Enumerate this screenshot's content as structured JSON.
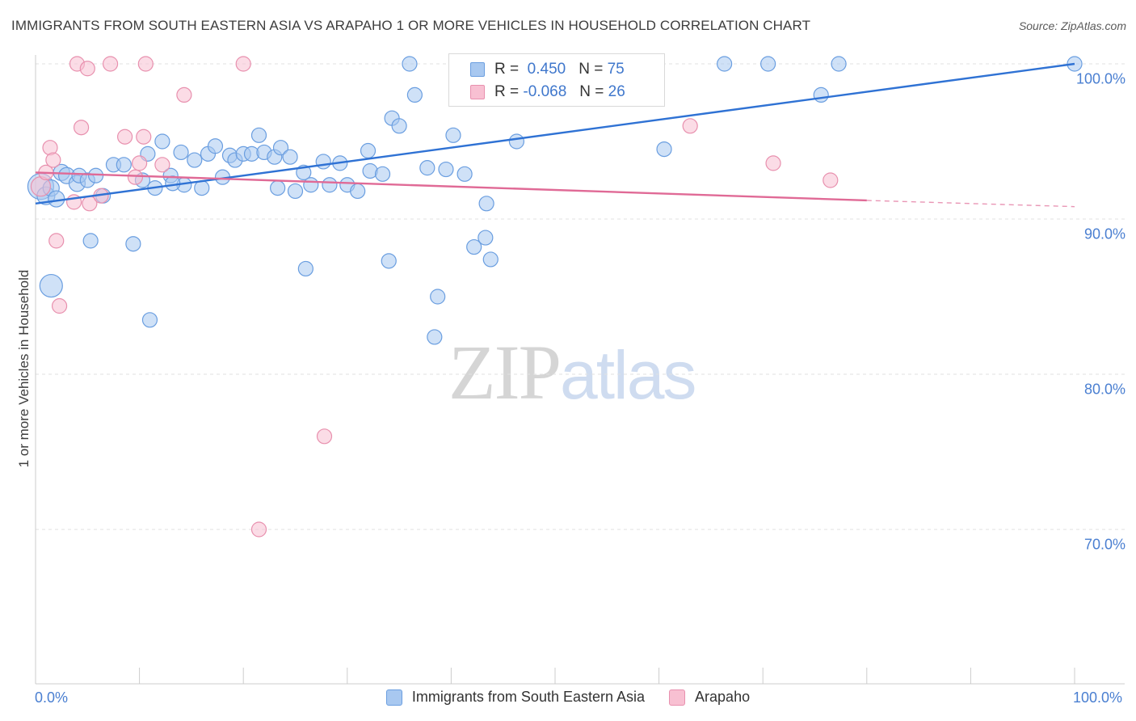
{
  "header": {
    "title": "IMMIGRANTS FROM SOUTH EASTERN ASIA VS ARAPAHO 1 OR MORE VEHICLES IN HOUSEHOLD CORRELATION CHART",
    "source": "Source: ZipAtlas.com"
  },
  "watermark": {
    "zip": "ZIP",
    "atlas": "atlas"
  },
  "legend": {
    "rows": [
      {
        "r_label": "R =",
        "r_value": "0.450",
        "n_label": "N =",
        "n_value": "75",
        "color": "#a8c8f0",
        "border": "#6a9ee0"
      },
      {
        "r_label": "R =",
        "r_value": "-0.068",
        "n_label": "N =",
        "n_value": "26",
        "color": "#f8c0d2",
        "border": "#e890ae"
      }
    ]
  },
  "chart_data": {
    "type": "scatter",
    "title": "IMMIGRANTS FROM SOUTH EASTERN ASIA VS ARAPAHO 1 OR MORE VEHICLES IN HOUSEHOLD CORRELATION CHART",
    "xlabel": "",
    "ylabel": "1 or more Vehicles in Household",
    "xlim": [
      0,
      100
    ],
    "ylim": [
      60,
      103
    ],
    "x_ticks": [
      "0.0%",
      "100.0%"
    ],
    "y_ticks": [
      {
        "value": 100,
        "label": "100.0%"
      },
      {
        "value": 90,
        "label": "90.0%"
      },
      {
        "value": 80,
        "label": "80.0%"
      },
      {
        "value": 70,
        "label": "70.0%"
      }
    ],
    "grid": true,
    "legend_placement": "bottom",
    "series": [
      {
        "name": "Immigrants from South Eastern Asia",
        "color": "#a8c8f0",
        "edge": "#6a9ee0",
        "trend_color": "#2f72d4",
        "trend": {
          "x0": 0,
          "y0": 91.0,
          "x1": 100,
          "y1": 100.0
        },
        "points": [
          [
            0.5,
            92.1,
            16
          ],
          [
            1.0,
            91.5,
            11
          ],
          [
            1.5,
            92.0,
            10
          ],
          [
            2.0,
            91.3,
            10
          ],
          [
            2.5,
            93.0,
            10
          ],
          [
            3.0,
            92.8,
            10
          ],
          [
            4.0,
            92.3,
            10
          ],
          [
            4.2,
            92.8,
            9
          ],
          [
            5.0,
            92.5,
            9
          ],
          [
            5.8,
            92.8,
            9
          ],
          [
            6.5,
            91.5,
            9
          ],
          [
            5.3,
            88.6,
            9
          ],
          [
            7.5,
            93.5,
            9
          ],
          [
            8.5,
            93.5,
            9
          ],
          [
            9.4,
            88.4,
            9
          ],
          [
            10.3,
            92.5,
            9
          ],
          [
            10.8,
            94.2,
            9
          ],
          [
            11.5,
            92.0,
            9
          ],
          [
            12.2,
            95.0,
            9
          ],
          [
            13.0,
            92.8,
            9
          ],
          [
            14.0,
            94.3,
            9
          ],
          [
            14.3,
            92.2,
            9
          ],
          [
            15.3,
            93.8,
            9
          ],
          [
            16.0,
            92.0,
            9
          ],
          [
            16.6,
            94.2,
            9
          ],
          [
            17.3,
            94.7,
            9
          ],
          [
            18.0,
            92.7,
            9
          ],
          [
            18.7,
            94.1,
            9
          ],
          [
            19.2,
            93.8,
            9
          ],
          [
            20.0,
            94.2,
            9
          ],
          [
            20.8,
            94.2,
            9
          ],
          [
            21.5,
            95.4,
            9
          ],
          [
            22.0,
            94.3,
            9
          ],
          [
            23.0,
            94.0,
            9
          ],
          [
            23.6,
            94.6,
            9
          ],
          [
            24.5,
            94.0,
            9
          ],
          [
            25.0,
            91.8,
            9
          ],
          [
            25.8,
            93.0,
            9
          ],
          [
            26.5,
            92.2,
            9
          ],
          [
            27.7,
            93.7,
            9
          ],
          [
            28.3,
            92.2,
            9
          ],
          [
            29.3,
            93.6,
            9
          ],
          [
            30.0,
            92.2,
            9
          ],
          [
            31.0,
            91.8,
            9
          ],
          [
            32.0,
            94.4,
            9
          ],
          [
            32.2,
            93.1,
            9
          ],
          [
            33.4,
            92.9,
            9
          ],
          [
            34.0,
            87.3,
            9
          ],
          [
            34.3,
            96.5,
            9
          ],
          [
            35.0,
            96.0,
            9
          ],
          [
            36.0,
            100.0,
            9
          ],
          [
            36.5,
            98.0,
            9
          ],
          [
            37.7,
            93.3,
            9
          ],
          [
            38.7,
            85.0,
            9
          ],
          [
            38.4,
            82.4,
            9
          ],
          [
            39.5,
            93.2,
            9
          ],
          [
            40.2,
            95.4,
            9
          ],
          [
            41.3,
            92.9,
            9
          ],
          [
            42.2,
            88.2,
            9
          ],
          [
            43.3,
            88.8,
            9
          ],
          [
            43.4,
            91.0,
            9
          ],
          [
            43.8,
            87.4,
            9
          ],
          [
            46.3,
            95.0,
            9
          ],
          [
            11.0,
            83.5,
            9
          ],
          [
            23.3,
            92.0,
            9
          ],
          [
            26.0,
            86.8,
            9
          ],
          [
            47.3,
            100.0,
            9
          ],
          [
            60.5,
            94.5,
            9
          ],
          [
            66.3,
            100.0,
            9
          ],
          [
            70.5,
            100.0,
            9
          ],
          [
            75.6,
            98.0,
            9
          ],
          [
            77.3,
            100.0,
            9
          ],
          [
            100.0,
            100.0,
            9
          ],
          [
            1.5,
            85.7,
            14
          ],
          [
            13.2,
            92.3,
            9
          ]
        ]
      },
      {
        "name": "Arapaho",
        "color": "#f8c0d2",
        "edge": "#e890ae",
        "trend_color": "#e06a96",
        "trend": {
          "x0": 0,
          "y0": 93.0,
          "x1": 80,
          "y1": 91.2,
          "dash_x1": 100,
          "dash_y1": 90.8
        },
        "points": [
          [
            0.5,
            92.1,
            12
          ],
          [
            1.0,
            93.0,
            9
          ],
          [
            1.4,
            94.6,
            9
          ],
          [
            1.7,
            93.8,
            9
          ],
          [
            2.0,
            88.6,
            9
          ],
          [
            2.3,
            84.4,
            9
          ],
          [
            3.7,
            91.1,
            9
          ],
          [
            4.0,
            100.0,
            9
          ],
          [
            4.4,
            95.9,
            9
          ],
          [
            5.0,
            99.7,
            9
          ],
          [
            5.2,
            91.0,
            9
          ],
          [
            6.3,
            91.5,
            9
          ],
          [
            7.2,
            100.0,
            9
          ],
          [
            8.6,
            95.3,
            9
          ],
          [
            9.6,
            92.7,
            9
          ],
          [
            10.0,
            93.6,
            9
          ],
          [
            10.4,
            95.3,
            9
          ],
          [
            10.6,
            100.0,
            9
          ],
          [
            14.3,
            98.0,
            9
          ],
          [
            20.0,
            100.0,
            9
          ],
          [
            21.5,
            70.0,
            9
          ],
          [
            27.8,
            76.0,
            9
          ],
          [
            63.0,
            96.0,
            9
          ],
          [
            71.0,
            93.6,
            9
          ],
          [
            76.5,
            92.5,
            9
          ],
          [
            12.2,
            93.5,
            9
          ]
        ]
      }
    ]
  }
}
